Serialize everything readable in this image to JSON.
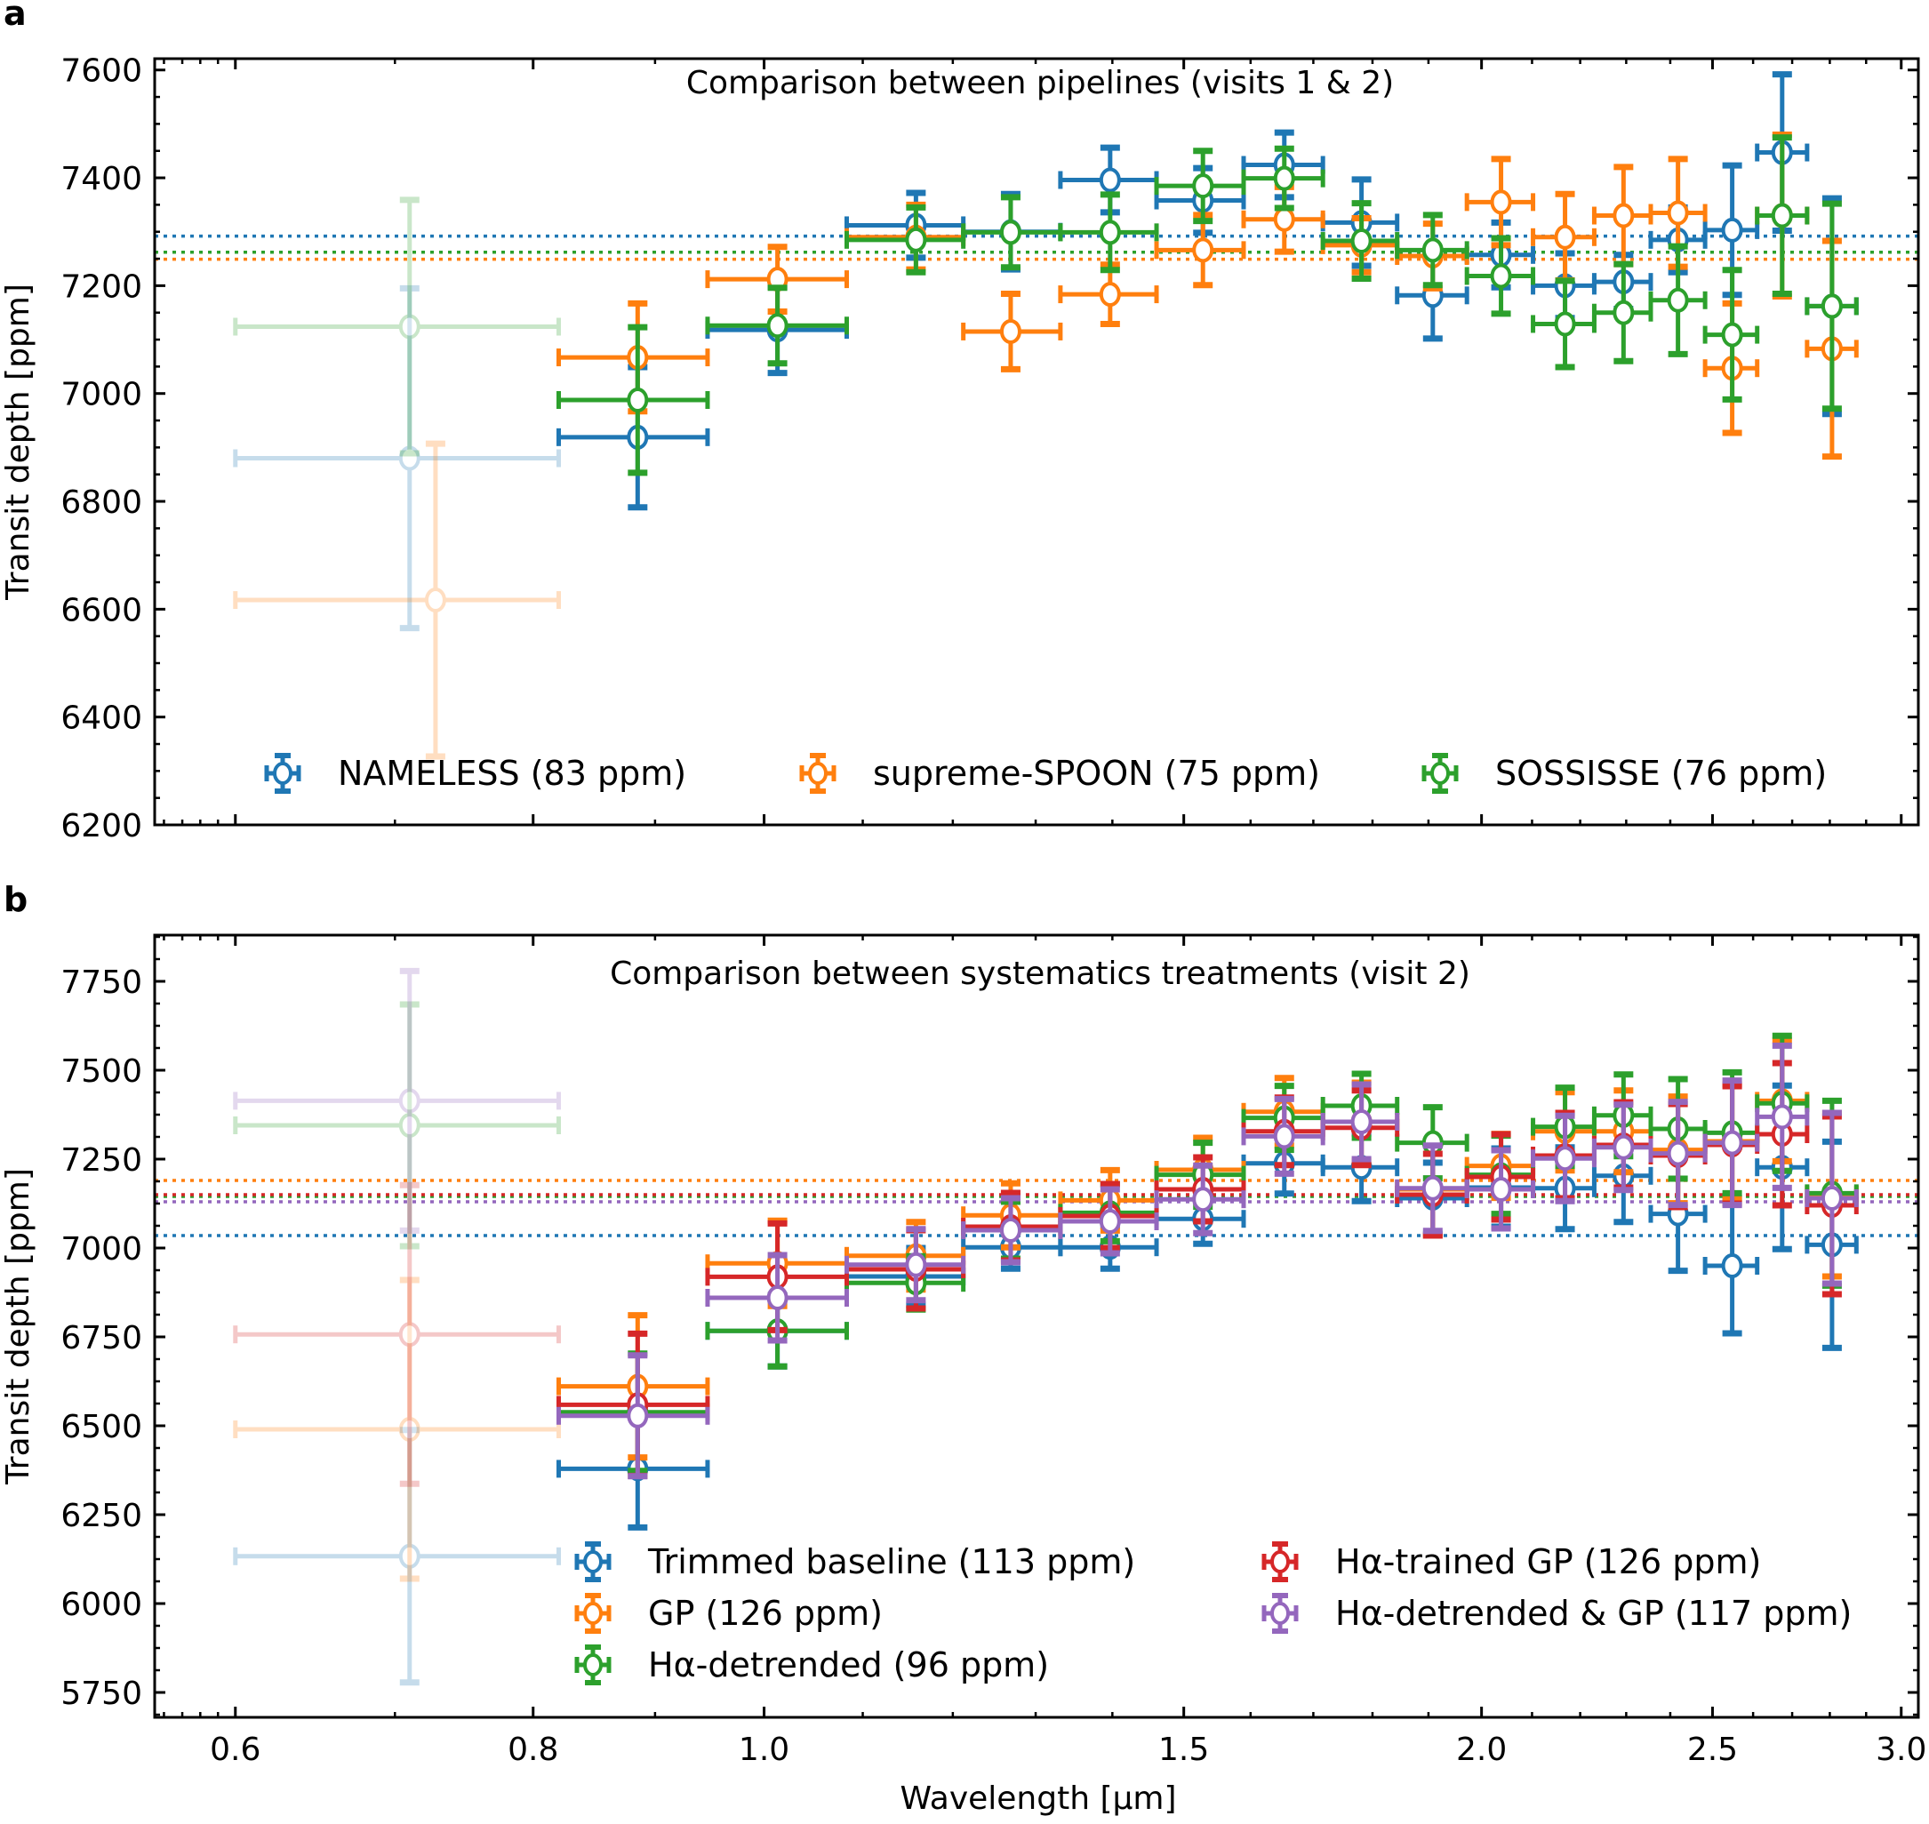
{
  "chart_data": [
    {
      "type": "scatter",
      "panel_letter": "a",
      "title": "Comparison between pipelines (visits 1 & 2)",
      "xlabel": "",
      "ylabel": "Transit depth [ppm]",
      "xscale": "log",
      "xlim": [
        0.555,
        3.05
      ],
      "ylim": [
        6200,
        7621
      ],
      "yticks": [
        6200,
        6400,
        6600,
        6800,
        7000,
        7200,
        7400,
        7600
      ],
      "xticks": [
        0.6,
        0.8,
        1.0,
        1.5,
        2.0,
        2.5,
        3.0
      ],
      "grid": false,
      "legend_position": "bottom",
      "legend_columns": 3,
      "faded_first_bin": true,
      "series": [
        {
          "name": "NAMELESS (83 ppm)",
          "color": "#1f77b4",
          "mean_line": 7292,
          "x": [
            0.71,
            0.885,
            1.013,
            1.158,
            1.269,
            1.397,
            1.528,
            1.653,
            1.781,
            1.908,
            2.038,
            2.168,
            2.294,
            2.418,
            2.548,
            2.674,
            2.806
          ],
          "y": [
            6880,
            6919,
            7118,
            7312,
            7300,
            7396,
            7358,
            7424,
            7317,
            7182,
            7257,
            7200,
            7207,
            7285,
            7303,
            7447,
            7162
          ],
          "yerr": [
            315,
            130,
            80,
            60,
            70,
            60,
            60,
            60,
            80,
            80,
            60,
            60,
            50,
            60,
            120,
            145,
            200
          ]
        },
        {
          "name": "supreme-SPOON (75 ppm)",
          "color": "#ff7f0e",
          "mean_line": 7249,
          "x": [
            0.728,
            0.885,
            1.013,
            1.158,
            1.269,
            1.397,
            1.528,
            1.653,
            1.781,
            1.908,
            2.038,
            2.168,
            2.294,
            2.418,
            2.548,
            2.674,
            2.806
          ],
          "y": [
            6617,
            7067,
            7212,
            7290,
            7115,
            7184,
            7266,
            7323,
            7275,
            7255,
            7355,
            7290,
            7330,
            7335,
            7047,
            7330,
            7083
          ],
          "yerr": [
            290,
            100,
            60,
            60,
            70,
            55,
            65,
            60,
            50,
            60,
            80,
            80,
            90,
            100,
            120,
            150,
            200
          ]
        },
        {
          "name": "SOSSISSE (76 ppm)",
          "color": "#2ca02c",
          "mean_line": 7262,
          "x": [
            0.71,
            0.885,
            1.013,
            1.158,
            1.269,
            1.397,
            1.528,
            1.653,
            1.781,
            1.908,
            2.038,
            2.168,
            2.294,
            2.418,
            2.548,
            2.674,
            2.806
          ],
          "y": [
            7124,
            6988,
            7126,
            7285,
            7299,
            7299,
            7385,
            7399,
            7283,
            7266,
            7218,
            7129,
            7150,
            7173,
            7109,
            7330,
            7162
          ],
          "yerr": [
            235,
            135,
            70,
            60,
            65,
            70,
            65,
            55,
            70,
            65,
            70,
            80,
            90,
            100,
            120,
            145,
            190
          ]
        }
      ]
    },
    {
      "type": "scatter",
      "panel_letter": "b",
      "title": "Comparison between systematics treatments (visit 2)",
      "xlabel": "Wavelength [µm]",
      "ylabel": "Transit depth [ppm]",
      "xscale": "log",
      "xlim": [
        0.555,
        3.05
      ],
      "ylim": [
        5680,
        7880
      ],
      "yticks": [
        5750,
        6000,
        6250,
        6500,
        6750,
        7000,
        7250,
        7500,
        7750
      ],
      "xticks": [
        0.6,
        0.8,
        1.0,
        1.5,
        2.0,
        2.5,
        3.0
      ],
      "grid": false,
      "legend_position": "bottom",
      "legend_columns": 2,
      "faded_first_bin": true,
      "series": [
        {
          "name": "Trimmed baseline (113 ppm)",
          "color": "#1f77b4",
          "mean_line": 7035,
          "x": [
            0.71,
            0.885,
            1.013,
            1.158,
            1.269,
            1.397,
            1.528,
            1.653,
            1.781,
            1.908,
            2.038,
            2.168,
            2.294,
            2.418,
            2.548,
            2.674,
            2.806
          ],
          "y": [
            6133,
            6379,
            6767,
            6920,
            7002,
            7002,
            7082,
            7238,
            7227,
            7140,
            7170,
            7168,
            7203,
            7096,
            6950,
            7227,
            7009
          ],
          "yerr": [
            355,
            165,
            100,
            80,
            60,
            60,
            70,
            85,
            95,
            100,
            110,
            115,
            130,
            160,
            190,
            230,
            290
          ]
        },
        {
          "name": "GP (126 ppm)",
          "color": "#ff7f0e",
          "mean_line": 7190,
          "x": [
            0.71,
            0.885,
            1.013,
            1.158,
            1.269,
            1.397,
            1.528,
            1.653,
            1.781,
            1.908,
            2.038,
            2.168,
            2.294,
            2.418,
            2.548,
            2.674,
            2.806
          ],
          "y": [
            6490,
            6611,
            6957,
            6978,
            7092,
            7134,
            7220,
            7383,
            7355,
            7165,
            7231,
            7328,
            7328,
            7276,
            7300,
            7414,
            7150
          ],
          "yerr": [
            420,
            200,
            120,
            95,
            90,
            85,
            90,
            95,
            110,
            130,
            90,
            110,
            115,
            150,
            160,
            170,
            230
          ]
        },
        {
          "name": "Hα-detrended (96 ppm)",
          "color": "#2ca02c",
          "mean_line": 7145,
          "x": [
            0.71,
            0.885,
            1.013,
            1.158,
            1.269,
            1.397,
            1.528,
            1.653,
            1.781,
            1.908,
            2.038,
            2.168,
            2.294,
            2.418,
            2.548,
            2.674,
            2.806
          ],
          "y": [
            7345,
            6538,
            6767,
            6902,
            7050,
            7099,
            7206,
            7366,
            7400,
            7296,
            7206,
            7341,
            7373,
            7335,
            7324,
            7407,
            7154
          ],
          "yerr": [
            340,
            165,
            100,
            75,
            80,
            80,
            90,
            90,
            90,
            100,
            110,
            110,
            115,
            140,
            170,
            190,
            260
          ]
        },
        {
          "name": "Hα-trained GP (126 ppm)",
          "color": "#d62728",
          "mean_line": 7150,
          "x": [
            0.71,
            0.885,
            1.013,
            1.158,
            1.269,
            1.397,
            1.528,
            1.653,
            1.781,
            1.908,
            2.038,
            2.168,
            2.294,
            2.418,
            2.548,
            2.674,
            2.806
          ],
          "y": [
            6757,
            6559,
            6919,
            6940,
            7060,
            7090,
            7165,
            7328,
            7338,
            7150,
            7200,
            7260,
            7290,
            7260,
            7290,
            7320,
            7120
          ],
          "yerr": [
            420,
            200,
            150,
            110,
            95,
            90,
            90,
            95,
            105,
            115,
            120,
            120,
            120,
            145,
            165,
            200,
            250
          ]
        },
        {
          "name": "Hα-detrended & GP (117 ppm)",
          "color": "#9467bd",
          "mean_line": 7130,
          "x": [
            0.71,
            0.885,
            1.013,
            1.158,
            1.269,
            1.397,
            1.528,
            1.653,
            1.781,
            1.908,
            2.038,
            2.168,
            2.294,
            2.418,
            2.548,
            2.674,
            2.806
          ],
          "y": [
            7414,
            6528,
            6860,
            6953,
            7050,
            7075,
            7137,
            7314,
            7355,
            7168,
            7165,
            7252,
            7283,
            7266,
            7296,
            7369,
            7140
          ],
          "yerr": [
            365,
            170,
            120,
            100,
            90,
            90,
            95,
            105,
            105,
            120,
            110,
            120,
            120,
            145,
            175,
            200,
            240
          ]
        }
      ]
    }
  ]
}
